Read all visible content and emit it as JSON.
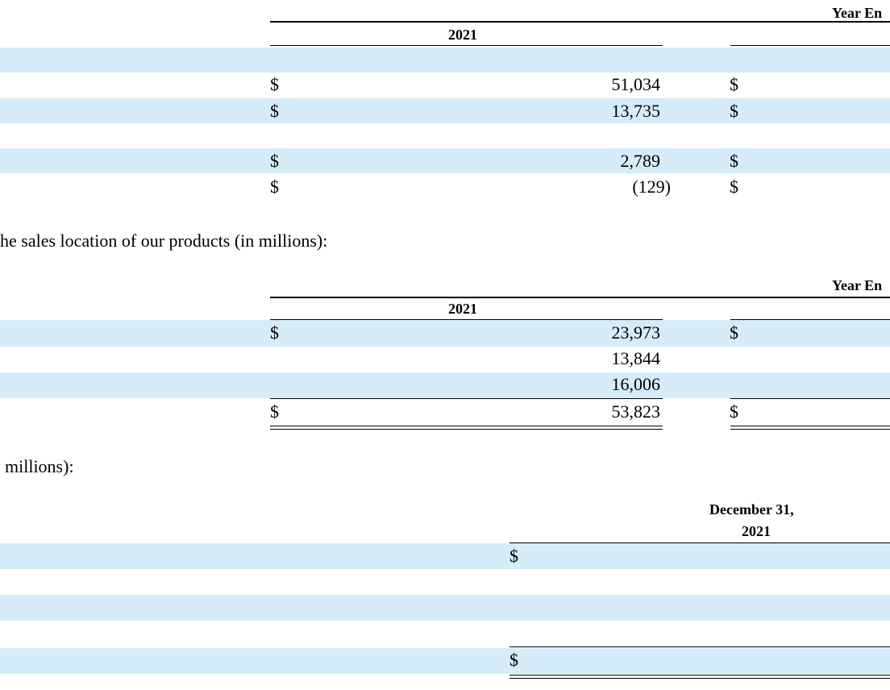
{
  "colors": {
    "band": "#d6ecf8",
    "text": "#000000"
  },
  "table1": {
    "header_right": "Year En",
    "year": "2021",
    "rows": [
      {
        "currency": "$",
        "value": "51,034",
        "currency_next": "$"
      },
      {
        "currency": "$",
        "value": "13,735",
        "currency_next": "$"
      },
      {
        "currency": "$",
        "value": "2,789",
        "currency_next": "$"
      },
      {
        "currency": "$",
        "value": "(129)",
        "currency_next": "$"
      }
    ]
  },
  "paragraph1": "he sales location of our products (in millions):",
  "table2": {
    "header_right": "Year En",
    "year": "2021",
    "rows": [
      {
        "currency": "$",
        "value": "23,973",
        "currency_next": "$"
      },
      {
        "currency": "",
        "value": "13,844",
        "currency_next": ""
      },
      {
        "currency": "",
        "value": "16,006",
        "currency_next": ""
      }
    ],
    "total": {
      "currency": "$",
      "value": "53,823",
      "currency_next": "$"
    }
  },
  "paragraph2": "millions):",
  "table3": {
    "header_line1": "December 31,",
    "header_line2": "2021",
    "rows": [
      {
        "currency": "$"
      },
      {
        "currency": ""
      },
      {
        "currency": ""
      },
      {
        "currency": ""
      }
    ],
    "total": {
      "currency": "$"
    }
  }
}
